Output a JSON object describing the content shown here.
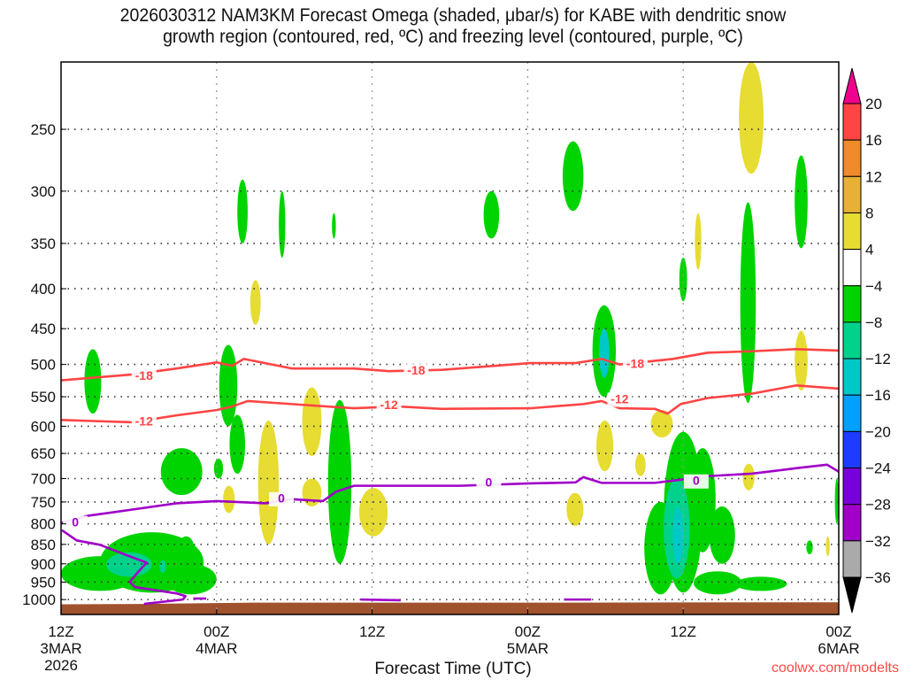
{
  "chart_data": {
    "type": "heatmap",
    "title_line1": "2026030312 NAM3KM Forecast Omega (shaded, μbar/s) for KABE with dendritic snow",
    "title_line2": "growth region (contoured, red, ºC) and freezing level (contoured, purple, ºC)",
    "xlabel": "Forecast Time (UTC)",
    "ylabel": "",
    "credit": "coolwx.com/modelts",
    "x_units": "hours since 2026-03-03 12Z",
    "xlim": [
      0,
      60
    ],
    "ylim_hPa": [
      1045,
      205
    ],
    "y_scale": "log",
    "grid": true,
    "y_ticks": [
      "250",
      "300",
      "350",
      "400",
      "450",
      "500",
      "550",
      "600",
      "650",
      "700",
      "750",
      "800",
      "850",
      "900",
      "950",
      "1000"
    ],
    "x_ticks": [
      {
        "hour": 0,
        "l1": "12Z",
        "l2": "3MAR",
        "l3": "2026"
      },
      {
        "hour": 12,
        "l1": "00Z",
        "l2": "4MAR",
        "l3": ""
      },
      {
        "hour": 24,
        "l1": "12Z",
        "l2": "",
        "l3": ""
      },
      {
        "hour": 36,
        "l1": "00Z",
        "l2": "5MAR",
        "l3": ""
      },
      {
        "hour": 48,
        "l1": "12Z",
        "l2": "",
        "l3": ""
      },
      {
        "hour": 60,
        "l1": "00Z",
        "l2": "6MAR",
        "l3": ""
      }
    ],
    "colorbar": {
      "labels": [
        "20",
        "16",
        "12",
        "8",
        "4",
        "−4",
        "−8",
        "−12",
        "−16",
        "−20",
        "−24",
        "−28",
        "−32",
        "−36"
      ],
      "colors": [
        "#ff4444",
        "#f08a2a",
        "#e8b034",
        "#e6dc32",
        "#ffffff",
        "#00d400",
        "#00d28c",
        "#00c8c8",
        "#00a0ff",
        "#1e3cff",
        "#7800dc",
        "#a000c8",
        "#aaaaaa"
      ],
      "over_color": "#f0008c",
      "under_color": "#000000"
    },
    "omega_regions_hour_hPa_value": [
      [
        1.8,
        3.1,
        478,
        578,
        -6
      ],
      [
        7.7,
        10.9,
        640,
        735,
        -6
      ],
      [
        12.2,
        13.6,
        472,
        600,
        -6
      ],
      [
        13.0,
        14.2,
        580,
        690,
        -6
      ],
      [
        11.8,
        12.5,
        660,
        700,
        -6
      ],
      [
        13.6,
        14.4,
        290,
        350,
        -6
      ],
      [
        16.8,
        17.3,
        300,
        365,
        -6
      ],
      [
        20.9,
        21.2,
        320,
        345,
        -6
      ],
      [
        20.6,
        22.4,
        555,
        900,
        -6
      ],
      [
        32.6,
        33.8,
        300,
        345,
        -6
      ],
      [
        38.7,
        40.3,
        259,
        318,
        -6
      ],
      [
        41.0,
        42.8,
        420,
        550,
        -6
      ],
      [
        41.5,
        42.3,
        450,
        520,
        -14
      ],
      [
        45.0,
        47.5,
        750,
        985,
        -6
      ],
      [
        46.5,
        49.5,
        610,
        980,
        -6
      ],
      [
        48.5,
        50.5,
        640,
        870,
        -6
      ],
      [
        50.0,
        52.0,
        760,
        900,
        -6
      ],
      [
        48.8,
        52.5,
        920,
        985,
        -6
      ],
      [
        46.5,
        48.5,
        700,
        940,
        -10
      ],
      [
        47.2,
        48.0,
        760,
        900,
        -14
      ],
      [
        52.4,
        53.6,
        310,
        560,
        -6
      ],
      [
        56.6,
        57.6,
        270,
        355,
        -6
      ],
      [
        47.7,
        48.3,
        365,
        415,
        -6
      ],
      [
        52.0,
        56.0,
        935,
        975,
        -6
      ],
      [
        59.7,
        60.0,
        700,
        800,
        -6
      ],
      [
        57.5,
        58.0,
        840,
        875,
        -6
      ],
      [
        0.0,
        6.0,
        880,
        975,
        -6
      ],
      [
        3.0,
        11.0,
        820,
        980,
        -6
      ],
      [
        8.0,
        12.0,
        900,
        985,
        -6
      ],
      [
        9.0,
        10.3,
        830,
        900,
        -6
      ],
      [
        3.5,
        7.0,
        870,
        935,
        -10
      ],
      [
        7.6,
        8.1,
        890,
        925,
        -10
      ],
      [
        14.6,
        15.4,
        390,
        445,
        6
      ],
      [
        15.2,
        16.8,
        590,
        850,
        6
      ],
      [
        18.6,
        20.1,
        535,
        655,
        6
      ],
      [
        12.5,
        13.4,
        715,
        775,
        6
      ],
      [
        18.6,
        20.1,
        700,
        760,
        6
      ],
      [
        23.0,
        25.2,
        720,
        830,
        6
      ],
      [
        39.0,
        40.3,
        730,
        805,
        6
      ],
      [
        41.3,
        42.6,
        590,
        685,
        6
      ],
      [
        44.3,
        45.1,
        650,
        695,
        6
      ],
      [
        45.5,
        47.2,
        572,
        620,
        6
      ],
      [
        52.3,
        54.2,
        205,
        285,
        6
      ],
      [
        48.9,
        49.4,
        320,
        378,
        6
      ],
      [
        56.6,
        57.6,
        453,
        540,
        6
      ],
      [
        52.6,
        53.5,
        670,
        725,
        6
      ],
      [
        59.0,
        59.3,
        830,
        880,
        6
      ]
    ],
    "contours": [
      {
        "level": "-18",
        "color": "#ff4444",
        "points": [
          [
            0,
            524
          ],
          [
            5.5,
            515
          ],
          [
            8.9,
            506
          ],
          [
            12,
            497
          ],
          [
            13.2,
            502
          ],
          [
            14.1,
            492
          ],
          [
            17.8,
            506
          ],
          [
            22.6,
            506
          ],
          [
            25.3,
            510
          ],
          [
            29.4,
            508
          ],
          [
            36.2,
            498
          ],
          [
            39.7,
            498
          ],
          [
            41.7,
            492
          ],
          [
            43.1,
            500
          ],
          [
            47.2,
            492
          ],
          [
            49.9,
            483
          ],
          [
            53.3,
            481
          ],
          [
            56.7,
            478
          ],
          [
            60,
            480
          ]
        ],
        "labels": [
          [
            6.4,
            518
          ],
          [
            27.4,
            510
          ],
          [
            44.3,
            500
          ]
        ]
      },
      {
        "level": "-12",
        "color": "#ff4444",
        "points": [
          [
            0,
            589
          ],
          [
            5.5,
            593
          ],
          [
            8.9,
            581
          ],
          [
            12,
            572
          ],
          [
            13.2,
            566
          ],
          [
            14.4,
            557
          ],
          [
            17.8,
            562
          ],
          [
            22.6,
            569
          ],
          [
            26,
            566
          ],
          [
            29.4,
            570
          ],
          [
            36.2,
            569
          ],
          [
            40.3,
            562
          ],
          [
            41.7,
            557
          ],
          [
            43.1,
            569
          ],
          [
            45.8,
            570
          ],
          [
            46.8,
            578
          ],
          [
            47.8,
            562
          ],
          [
            49.9,
            552
          ],
          [
            53.3,
            545
          ],
          [
            56.7,
            532
          ],
          [
            60,
            537
          ]
        ],
        "labels": [
          [
            6.4,
            593
          ],
          [
            25.3,
            565
          ],
          [
            43.1,
            555
          ]
        ]
      },
      {
        "level": "0",
        "color": "#a000c8",
        "points": [
          [
            0,
            798
          ],
          [
            2.1,
            781
          ],
          [
            5.5,
            767
          ],
          [
            8.9,
            753
          ],
          [
            12,
            748
          ],
          [
            15.8,
            753
          ],
          [
            17.8,
            744
          ],
          [
            20.2,
            748
          ],
          [
            21.2,
            728
          ],
          [
            22.6,
            715
          ],
          [
            24.6,
            715
          ],
          [
            27.4,
            715
          ],
          [
            30.8,
            715
          ],
          [
            36.2,
            710
          ],
          [
            39.7,
            708
          ],
          [
            40.3,
            697
          ],
          [
            41.7,
            709
          ],
          [
            45.8,
            709
          ],
          [
            48.5,
            700
          ],
          [
            49.9,
            695
          ],
          [
            53.3,
            690
          ],
          [
            56.7,
            679
          ],
          [
            59.1,
            672
          ],
          [
            60,
            686
          ]
        ],
        "labels": [
          [
            1.1,
            798
          ],
          [
            17,
            744
          ],
          [
            33,
            710
          ],
          [
            49,
            706
          ]
        ]
      },
      {
        "level": "0",
        "color": "#a000c8",
        "points": [
          [
            0.07,
            815
          ],
          [
            1.2,
            840
          ],
          [
            3.0,
            851
          ],
          [
            4.8,
            874
          ],
          [
            6.6,
            897
          ],
          [
            6.1,
            916
          ],
          [
            5.3,
            949
          ],
          [
            5.7,
            964
          ],
          [
            8.9,
            982
          ],
          [
            9.6,
            990
          ],
          [
            9.4,
            1000
          ],
          [
            6.4,
            1013
          ]
        ],
        "labels": []
      },
      {
        "level": "0",
        "color": "#a000c8",
        "points": [
          [
            10.2,
            997
          ],
          [
            11.2,
            997
          ]
        ],
        "labels": []
      },
      {
        "level": "0",
        "color": "#a000c8",
        "points": [
          [
            23.1,
            1000
          ],
          [
            26.2,
            1002
          ]
        ],
        "labels": []
      },
      {
        "level": "0",
        "color": "#a000c8",
        "points": [
          [
            38.8,
            1000
          ],
          [
            40.9,
            1000
          ]
        ],
        "labels": []
      }
    ],
    "surface_pressure_hPa": [
      [
        0,
        1014
      ],
      [
        6,
        1013
      ],
      [
        15,
        1009
      ],
      [
        40,
        1009
      ],
      [
        60,
        1008
      ]
    ],
    "colors": {
      "ground": "#a0522d"
    }
  }
}
